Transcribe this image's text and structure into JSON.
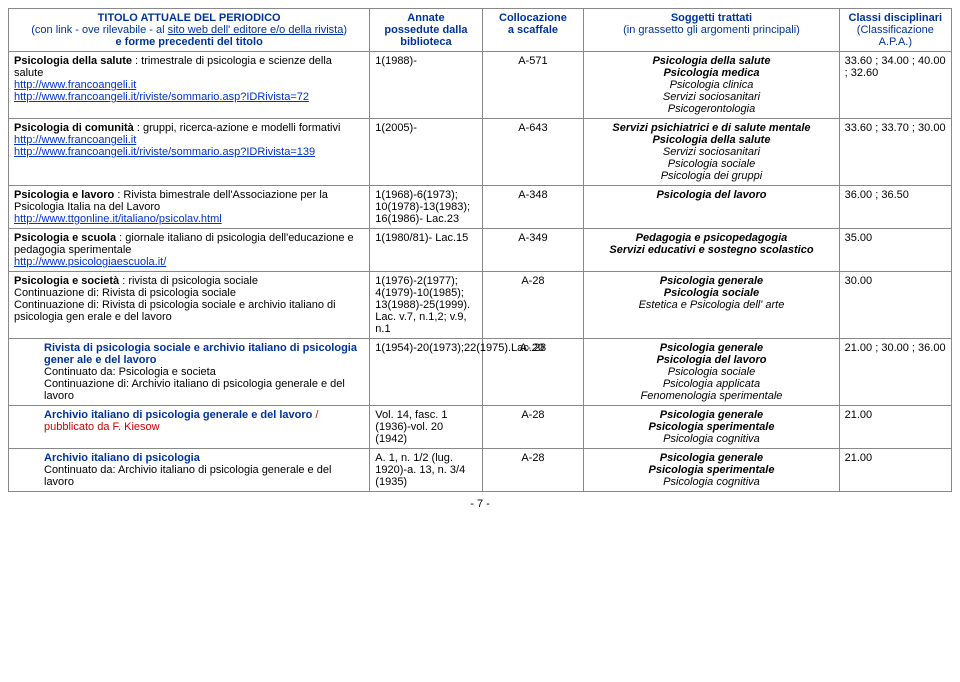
{
  "headers": {
    "title_l1": "TITOLO ATTUALE DEL PERIODICO",
    "title_l2_a": "(con link -  ove rilevabile - al ",
    "title_l2_b": "sito web dell' editore e/o della rivista",
    "title_l2_c": ")",
    "title_l3": "e forme precedenti del titolo",
    "annate_l1": "Annate",
    "annate_l2": "possedute dalla",
    "annate_l3": "biblioteca",
    "coll_l1": "Collocazione",
    "coll_l2": "a scaffale",
    "sogg_l1": "Soggetti trattati",
    "sogg_l2": "(in grassetto gli argomenti principali)",
    "classi_l1": "Classi disciplinari",
    "classi_l2": "(Classificazione",
    "classi_l3": "A.P.A.)"
  },
  "rows": [
    {
      "title_main": "Psicologia della salute",
      "title_rest": " : trimestrale di psicologia e scienze della salute",
      "links": [
        "http://www.francoangeli.it",
        "http://www.francoangeli.it/riviste/sommario.asp?IDRivista=72"
      ],
      "annate": "1(1988)-",
      "coll": "A-571",
      "sogg_bold": [
        "Psicologia della salute",
        "Psicologia medica"
      ],
      "sogg_plain": [
        "Psicologia clinica",
        "Servizi sociosanitari",
        "Psicogerontologia"
      ],
      "classi": "33.60 ; 34.00 ; 40.00 ; 32.60"
    },
    {
      "title_main": "Psicologia di comunità",
      "title_rest": " : gruppi, ricerca-azione e modelli formativi",
      "links": [
        "http://www.francoangeli.it",
        "http://www.francoangeli.it/riviste/sommario.asp?IDRivista=139"
      ],
      "annate": "1(2005)-",
      "coll": "A-643",
      "sogg_bold": [
        "Servizi psichiatrici e di salute mentale",
        "Psicologia della salute"
      ],
      "sogg_plain": [
        "Servizi sociosanitari",
        "Psicologia sociale",
        "Psicologia dei gruppi"
      ],
      "classi": "33.60 ; 33.70 ; 30.00"
    },
    {
      "title_main": "Psicologia e lavoro",
      "title_rest": " : Rivista bimestrale dell'Associazione per la Psicologia Italia na del Lavoro",
      "links": [
        "http://www.ttgonline.it/italiano/psicolav.html"
      ],
      "annate": "1(1968)-6(1973); 10(1978)-13(1983); 16(1986)- Lac.23",
      "coll": "A-348",
      "sogg_bold": [
        "Psicologia del lavoro"
      ],
      "sogg_plain": [],
      "classi": "36.00 ; 36.50"
    },
    {
      "title_main": "Psicologia e scuola",
      "title_rest": " : giornale italiano di psicologia dell'educazione e pedagogia sperimentale",
      "links": [
        "http://www.psicologiaescuola.it/"
      ],
      "annate": "1(1980/81)- Lac.15",
      "coll": "A-349",
      "sogg_bold": [
        "Pedagogia e psicopedagogia",
        "Servizi educativi e sostegno scolastico"
      ],
      "sogg_plain": [],
      "classi": "35.00"
    },
    {
      "title_main": "Psicologia e società",
      "title_rest": " : rivista di psicologia sociale",
      "cont": [
        "Continuazione di: Rivista di psicologia sociale",
        "Continuazione di: Rivista di psicologia sociale e archivio italiano di psicologia gen erale e del lavoro"
      ],
      "annate": "1(1976)-2(1977); 4(1979)-10(1985); 13(1988)-25(1999). Lac. v.7, n.1,2; v.9, n.1",
      "coll": "A-28",
      "sogg_bold": [
        "Psicologia generale",
        "Psicologia sociale"
      ],
      "sogg_plain": [
        "Estetica e Psicologia dell' arte"
      ],
      "classi": "30.00"
    },
    {
      "indent": true,
      "title_main": "Rivista di psicologia sociale e archivio italiano di psicologia gener ale e del lavoro",
      "cont": [
        "Continuato da: Psicologia e societa",
        "Continuazione di: Archivio italiano di psicologia generale e del lavoro"
      ],
      "annate": "1(1954)-20(1973);22(1975).Lac.20",
      "coll": "A-.28",
      "sogg_bold": [
        "Psicologia generale",
        "Psicologia del lavoro"
      ],
      "sogg_plain": [
        "Psicologia sociale",
        "Psicologia applicata",
        "Fenomenologia sperimentale"
      ],
      "classi": "21.00 ; 30.00 ; 36.00"
    },
    {
      "indent": true,
      "title_main": "Archivio italiano di psicologia generale e del lavoro",
      "title_red": " / pubblicato da F. Kiesow",
      "annate": "Vol. 14, fasc. 1 (1936)-vol. 20 (1942)",
      "coll": "A-28",
      "sogg_bold": [
        "Psicologia generale",
        "Psicologia sperimentale"
      ],
      "sogg_plain": [
        "Psicologia cognitiva"
      ],
      "classi": "21.00"
    },
    {
      "indent": true,
      "title_main": "Archivio italiano di psicologia",
      "cont": [
        "Continuato da: Archivio italiano di psicologia generale e del lavoro"
      ],
      "annate": "A. 1, n. 1/2 (lug. 1920)-a. 13, n. 3/4 (1935)",
      "coll": "A-28",
      "sogg_bold": [
        "Psicologia generale",
        "Psicologia sperimentale"
      ],
      "sogg_plain": [
        "Psicologia cognitiva"
      ],
      "classi": "21.00"
    }
  ],
  "page": "- 7 -"
}
